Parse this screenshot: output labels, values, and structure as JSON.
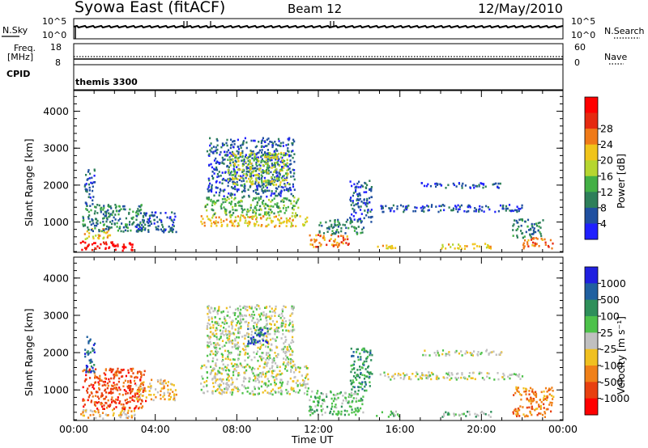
{
  "header": {
    "station": "Syowa East (fitACF)",
    "beam": "Beam 12",
    "date": "12/May/2010"
  },
  "top_panels": {
    "nsky_label": "N.Sky",
    "nsky_ticks": [
      "10^5",
      "10^0"
    ],
    "nsearch_label": "N.Search",
    "nsearch_ticks": [
      "10^5",
      "10^0"
    ],
    "freq_label": "Freq.",
    "freq_unit": "[MHz]",
    "freq_ticks": [
      "18",
      "8"
    ],
    "nave_label": "Nave",
    "nave_ticks": [
      "60",
      "0"
    ],
    "cpid_label": "CPID",
    "cpid_value": "themis 3300"
  },
  "chart_data": [
    {
      "type": "heatmap",
      "panel": "power",
      "xlabel": "",
      "ylabel": "Slant Range [km]",
      "x_ticks": [
        "00:00",
        "04:00",
        "08:00",
        "12:00",
        "16:00",
        "20:00",
        "00:00"
      ],
      "xlim_hours": [
        0,
        24
      ],
      "y_ticks": [
        1000,
        2000,
        3000,
        4000
      ],
      "ylim": [
        180,
        4560
      ],
      "colorbar_label": "Power [dB]",
      "colorbar_ticks": [
        "4",
        "8",
        "12",
        "16",
        "20",
        "24",
        "28"
      ],
      "colors": [
        "#2020ff",
        "#2050a0",
        "#2e7f5a",
        "#43b045",
        "#b6d630",
        "#f0c41a",
        "#f07a18",
        "#e62a10",
        "#ff0000"
      ],
      "regions": [
        {
          "t": [
            0.3,
            3.0
          ],
          "r": [
            250,
            500
          ],
          "level": 8
        },
        {
          "t": [
            0.5,
            1.8
          ],
          "r": [
            550,
            850
          ],
          "level": 5
        },
        {
          "t": [
            0.4,
            3.5
          ],
          "r": [
            750,
            1500
          ],
          "level": 2
        },
        {
          "t": [
            0.5,
            1.0
          ],
          "r": [
            1500,
            2450
          ],
          "level": 1
        },
        {
          "t": [
            3.0,
            5.0
          ],
          "r": [
            750,
            1300
          ],
          "level": 1
        },
        {
          "t": [
            6.2,
            11.5
          ],
          "r": [
            900,
            1200
          ],
          "level": 5
        },
        {
          "t": [
            6.4,
            11.0
          ],
          "r": [
            1200,
            1700
          ],
          "level": 3
        },
        {
          "t": [
            6.5,
            10.8
          ],
          "r": [
            1700,
            3300
          ],
          "level": 1
        },
        {
          "t": [
            7.5,
            10.5
          ],
          "r": [
            2000,
            2900
          ],
          "level": 4
        },
        {
          "t": [
            11.5,
            13.5
          ],
          "r": [
            350,
            700
          ],
          "level": 6
        },
        {
          "t": [
            12.0,
            14.2
          ],
          "r": [
            700,
            1100
          ],
          "level": 2
        },
        {
          "t": [
            13.5,
            14.6
          ],
          "r": [
            1000,
            2150
          ],
          "level": 1
        },
        {
          "t": [
            14.8,
            15.8
          ],
          "r": [
            300,
            450
          ],
          "level": 5
        },
        {
          "t": [
            17.0,
            21.0
          ],
          "r": [
            1950,
            2100
          ],
          "level": 1
        },
        {
          "t": [
            15.0,
            22.0
          ],
          "r": [
            1300,
            1500
          ],
          "level": 1
        },
        {
          "t": [
            18.0,
            20.5
          ],
          "r": [
            300,
            450
          ],
          "level": 5
        },
        {
          "t": [
            22.0,
            23.5
          ],
          "r": [
            300,
            600
          ],
          "level": 6
        },
        {
          "t": [
            21.5,
            23.0
          ],
          "r": [
            600,
            1100
          ],
          "level": 2
        }
      ]
    },
    {
      "type": "heatmap",
      "panel": "velocity",
      "xlabel": "Time UT",
      "ylabel": "Slant Range [km]",
      "x_ticks": [
        "00:00",
        "04:00",
        "08:00",
        "12:00",
        "16:00",
        "20:00",
        "00:00"
      ],
      "xlim_hours": [
        0,
        24
      ],
      "y_ticks": [
        1000,
        2000,
        3000,
        4000
      ],
      "ylim": [
        180,
        4560
      ],
      "colorbar_label": "Velocity [m s⁻¹]",
      "colorbar_ticks": [
        "1000",
        "500",
        "100",
        "25",
        "-25",
        "-100",
        "-500",
        "-1000"
      ],
      "colors": [
        "#2020e0",
        "#2060a0",
        "#2e8f5a",
        "#4dc24a",
        "#c0c0c0",
        "#f0c020",
        "#f08018",
        "#e84010",
        "#ff0000"
      ],
      "regions": [
        {
          "t": [
            0.3,
            3.0
          ],
          "r": [
            250,
            500
          ],
          "level": 5
        },
        {
          "t": [
            0.4,
            3.5
          ],
          "r": [
            500,
            1600
          ],
          "level": 7
        },
        {
          "t": [
            0.5,
            1.0
          ],
          "r": [
            1500,
            2450
          ],
          "level": 1
        },
        {
          "t": [
            3.0,
            5.0
          ],
          "r": [
            750,
            1300
          ],
          "level": 5
        },
        {
          "t": [
            6.2,
            11.5
          ],
          "r": [
            900,
            1700
          ],
          "level": 4
        },
        {
          "t": [
            6.5,
            10.8
          ],
          "r": [
            1700,
            3300
          ],
          "level": 4
        },
        {
          "t": [
            8.5,
            9.5
          ],
          "r": [
            2200,
            2700
          ],
          "level": 1
        },
        {
          "t": [
            11.5,
            14.2
          ],
          "r": [
            350,
            1000
          ],
          "level": 3
        },
        {
          "t": [
            13.5,
            14.6
          ],
          "r": [
            1000,
            2150
          ],
          "level": 2
        },
        {
          "t": [
            14.8,
            16.0
          ],
          "r": [
            300,
            450
          ],
          "level": 3
        },
        {
          "t": [
            17.0,
            21.0
          ],
          "r": [
            1950,
            2100
          ],
          "level": 4
        },
        {
          "t": [
            15.0,
            22.0
          ],
          "r": [
            1300,
            1500
          ],
          "level": 4
        },
        {
          "t": [
            18.0,
            20.5
          ],
          "r": [
            300,
            450
          ],
          "level": 3
        },
        {
          "t": [
            21.5,
            23.5
          ],
          "r": [
            300,
            1100
          ],
          "level": 6
        }
      ]
    }
  ]
}
